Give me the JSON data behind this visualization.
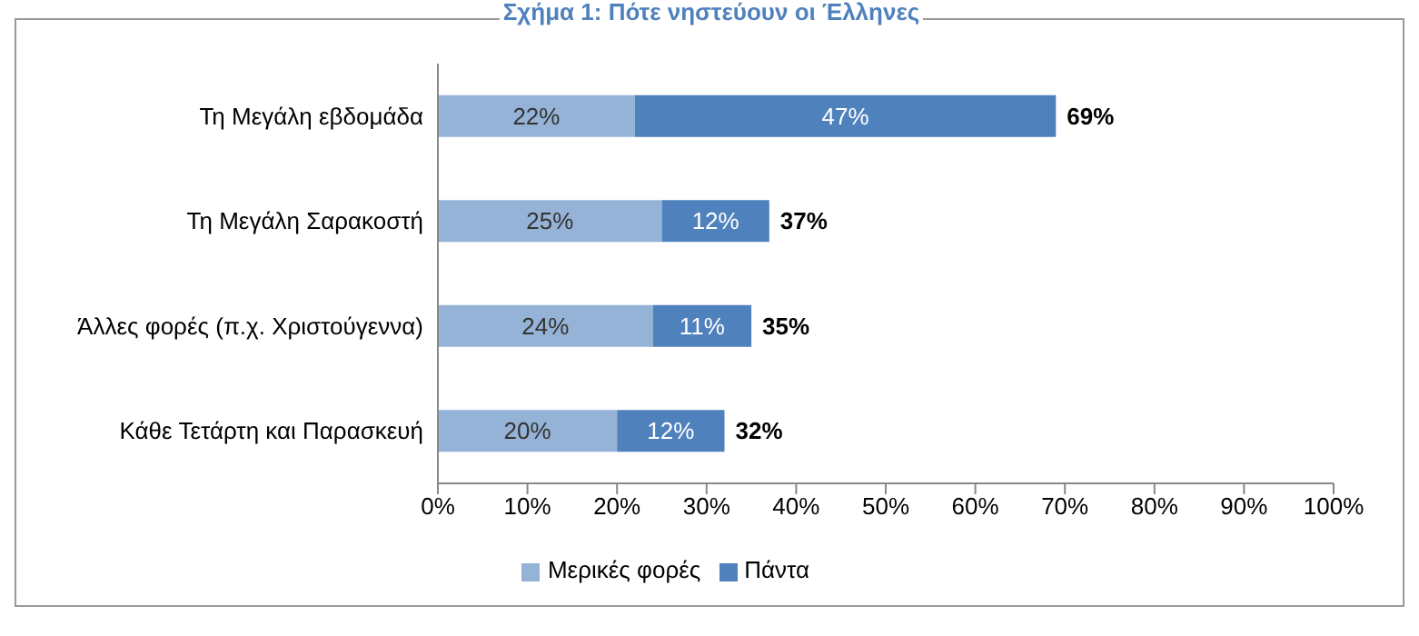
{
  "chart_data": {
    "type": "bar",
    "orientation": "horizontal",
    "stacked": true,
    "title": "Σχήμα 1: Πότε νηστεύουν οι Έλληνες",
    "categories": [
      "Τη Μεγάλη εβδομάδα",
      "Τη Μεγάλη Σαρακοστή",
      "Άλλες φορές (π.χ. Χριστούγεννα)",
      "Κάθε Τετάρτη και Παρασκευή"
    ],
    "series": [
      {
        "name": "Μερικές φορές",
        "color": "#95b3d7",
        "values": [
          22,
          25,
          24,
          20
        ],
        "value_labels": [
          "22%",
          "25%",
          "24%",
          "20%"
        ]
      },
      {
        "name": "Πάντα",
        "color": "#4f81bd",
        "values": [
          47,
          12,
          11,
          12
        ],
        "value_labels": [
          "47%",
          "12%",
          "11%",
          "12%"
        ]
      }
    ],
    "totals": [
      "69%",
      "37%",
      "35%",
      "32%"
    ],
    "xlim": [
      0,
      100
    ],
    "xticks": [
      {
        "value": 0,
        "label": "0%"
      },
      {
        "value": 10,
        "label": "10%"
      },
      {
        "value": 20,
        "label": "20%"
      },
      {
        "value": 30,
        "label": "30%"
      },
      {
        "value": 40,
        "label": "40%"
      },
      {
        "value": 50,
        "label": "50%"
      },
      {
        "value": 60,
        "label": "60%"
      },
      {
        "value": 70,
        "label": "70%"
      },
      {
        "value": 80,
        "label": "80%"
      },
      {
        "value": 90,
        "label": "90%"
      },
      {
        "value": 100,
        "label": "100%"
      }
    ],
    "grid": false,
    "legend": "bottom"
  }
}
